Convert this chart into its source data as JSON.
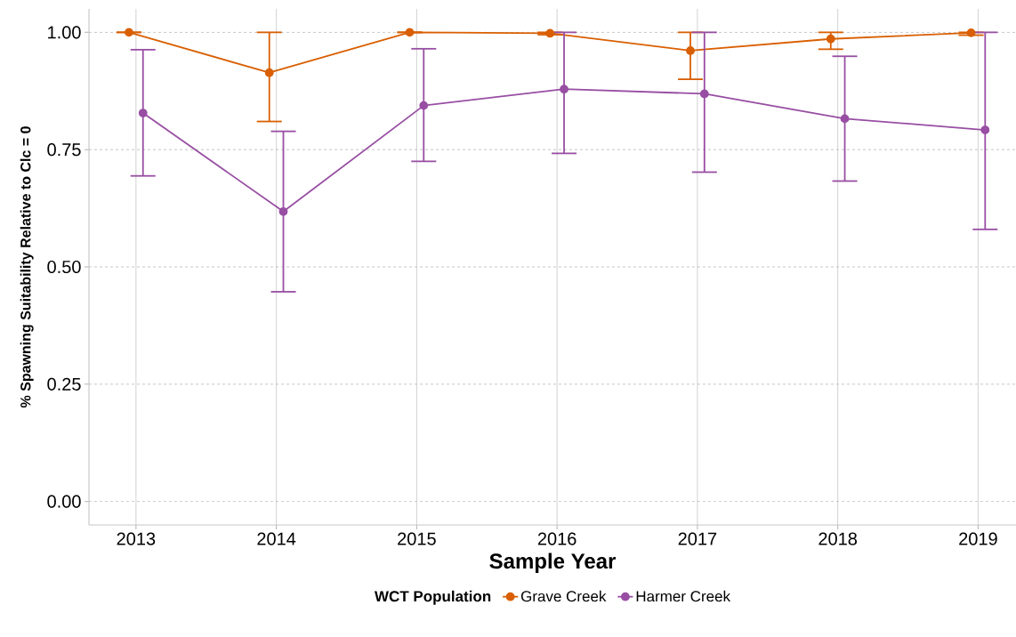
{
  "chart_data": {
    "type": "line",
    "xlabel": "Sample Year",
    "ylabel": "% Spawning Suitability Relative to Clc = 0",
    "legend_title": "WCT Population",
    "categories": [
      "2013",
      "2014",
      "2015",
      "2016",
      "2017",
      "2018",
      "2019"
    ],
    "series": [
      {
        "name": "Grave Creek",
        "color": "#d95f02",
        "values": [
          1.0,
          0.914,
          1.0,
          0.998,
          0.961,
          0.986,
          0.999
        ],
        "errors": [
          [
            1.0,
            1.0
          ],
          [
            0.81,
            1.0
          ],
          [
            1.0,
            1.0
          ],
          [
            0.995,
            1.0
          ],
          [
            0.9,
            1.0
          ],
          [
            0.964,
            1.0
          ],
          [
            0.994,
            1.0
          ]
        ]
      },
      {
        "name": "Harmer Creek",
        "color": "#984ea3",
        "values": [
          0.828,
          0.618,
          0.844,
          0.879,
          0.869,
          0.816,
          0.792
        ],
        "errors": [
          [
            0.694,
            0.963
          ],
          [
            0.447,
            0.789
          ],
          [
            0.725,
            0.965
          ],
          [
            0.742,
            1.0
          ],
          [
            0.702,
            1.0
          ],
          [
            0.683,
            0.949
          ],
          [
            0.58,
            1.0
          ]
        ]
      }
    ],
    "ylim": [
      -0.05,
      1.05
    ],
    "yticks": [
      {
        "value": 0,
        "label": "0.00"
      },
      {
        "value": 0.25,
        "label": "0.25"
      },
      {
        "value": 0.5,
        "label": "0.50"
      },
      {
        "value": 0.75,
        "label": "0.75"
      },
      {
        "value": 1,
        "label": "1.00"
      }
    ],
    "grid": true,
    "legend": "bottom",
    "marker": "circle",
    "line_style": "solid"
  }
}
